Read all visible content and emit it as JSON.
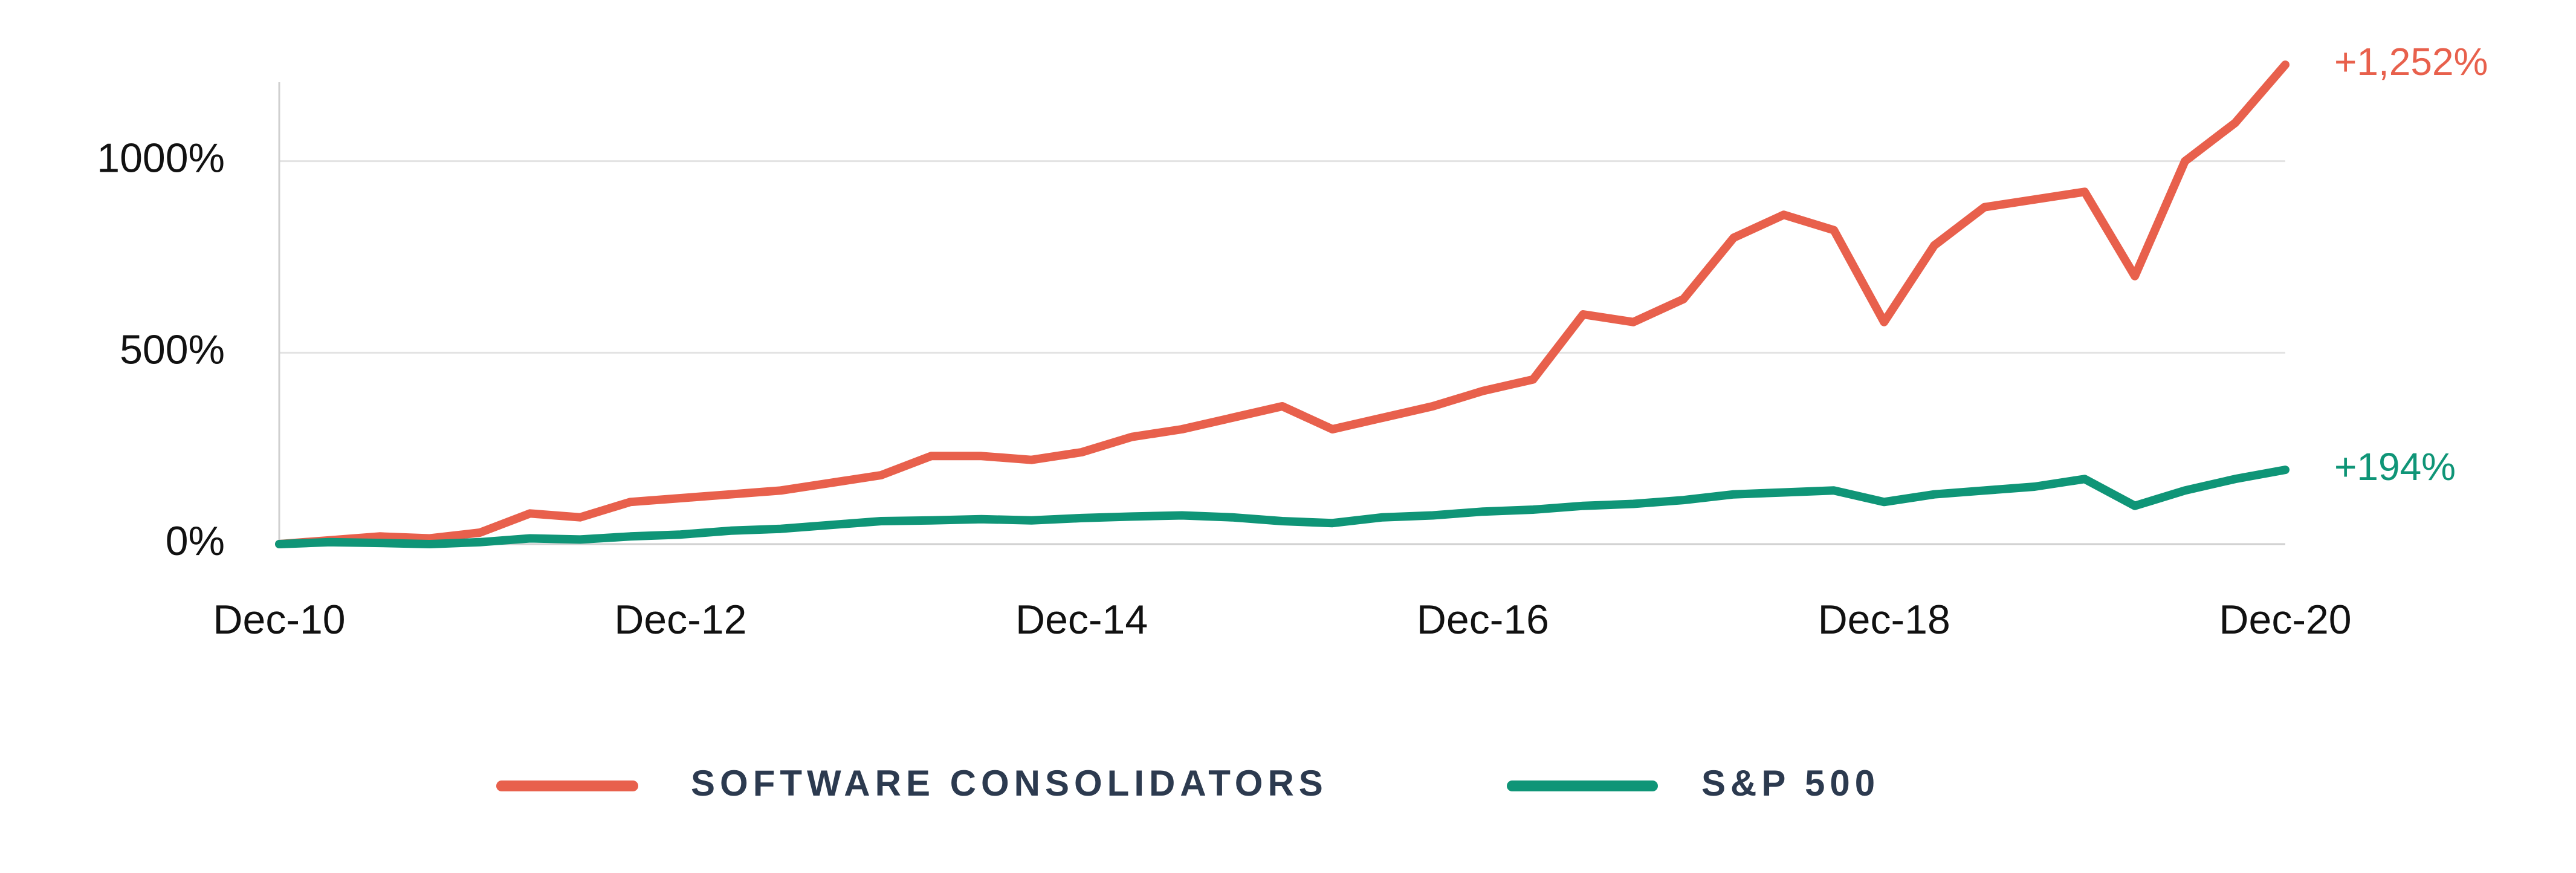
{
  "chart_data": {
    "type": "line",
    "x": [
      "Dec-10",
      "Mar-11",
      "Jun-11",
      "Sep-11",
      "Dec-11",
      "Mar-12",
      "Jun-12",
      "Sep-12",
      "Dec-12",
      "Mar-13",
      "Jun-13",
      "Sep-13",
      "Dec-13",
      "Mar-14",
      "Jun-14",
      "Sep-14",
      "Dec-14",
      "Mar-15",
      "Jun-15",
      "Sep-15",
      "Dec-15",
      "Mar-16",
      "Jun-16",
      "Sep-16",
      "Dec-16",
      "Mar-17",
      "Jun-17",
      "Sep-17",
      "Dec-17",
      "Mar-18",
      "Jun-18",
      "Sep-18",
      "Dec-18",
      "Mar-19",
      "Jun-19",
      "Sep-19",
      "Dec-19",
      "Mar-20",
      "Jun-20",
      "Sep-20",
      "Dec-20"
    ],
    "xtick_every": 8,
    "ylim": [
      0,
      1200
    ],
    "yticks": [
      {
        "value": 0,
        "label": "0%"
      },
      {
        "value": 500,
        "label": "500%"
      },
      {
        "value": 1000,
        "label": "1000%"
      }
    ],
    "grid": true,
    "series": [
      {
        "name": "SOFTWARE CONSOLIDATORS",
        "color": "#e8604c",
        "end_label": "+1,252%",
        "values": [
          0,
          10,
          20,
          15,
          30,
          80,
          70,
          110,
          120,
          130,
          140,
          160,
          180,
          230,
          230,
          220,
          240,
          280,
          300,
          330,
          360,
          300,
          330,
          360,
          400,
          430,
          600,
          580,
          640,
          800,
          860,
          820,
          580,
          780,
          880,
          900,
          920,
          700,
          1000,
          1100,
          1252
        ]
      },
      {
        "name": "S&P 500",
        "color": "#0f9577",
        "end_label": "+194%",
        "values": [
          0,
          5,
          3,
          0,
          5,
          15,
          12,
          20,
          25,
          35,
          40,
          50,
          60,
          62,
          65,
          62,
          68,
          72,
          75,
          70,
          60,
          55,
          70,
          75,
          85,
          90,
          100,
          105,
          115,
          130,
          135,
          140,
          110,
          130,
          140,
          150,
          170,
          100,
          140,
          170,
          194
        ]
      }
    ]
  }
}
